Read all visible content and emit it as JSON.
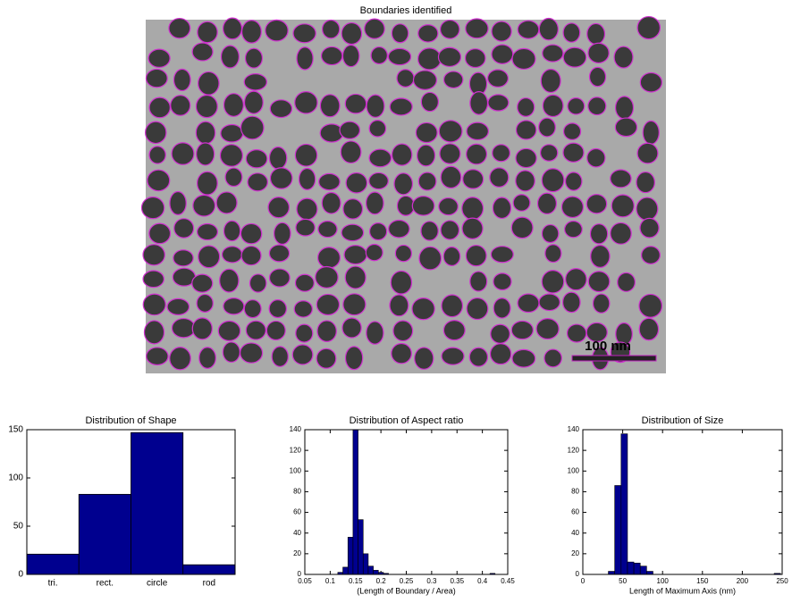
{
  "image": {
    "title": "Boundaries identified",
    "scale_label": "100 nm"
  },
  "chart_data": [
    {
      "type": "bar",
      "title": "Distribution of Shape",
      "categories": [
        "tri.",
        "rect.",
        "circle",
        "rod"
      ],
      "values": [
        21,
        83,
        147,
        10
      ],
      "color": "#00008f",
      "ylim": [
        0,
        150
      ],
      "yticks": [
        0,
        50,
        100,
        150
      ]
    },
    {
      "type": "histogram",
      "title": "Distribution of Aspect ratio",
      "xlabel": "(Length of Boundary / Area)",
      "color": "#00008f",
      "bins": [
        0.115,
        0.125,
        0.135,
        0.145,
        0.155,
        0.165,
        0.175,
        0.185,
        0.195,
        0.205,
        0.215,
        0.225,
        0.235,
        0.245,
        0.255,
        0.265,
        0.275,
        0.285,
        0.295,
        0.305,
        0.315,
        0.325,
        0.335,
        0.345,
        0.355,
        0.365,
        0.375,
        0.385,
        0.395,
        0.405,
        0.415,
        0.425
      ],
      "values": [
        2,
        7,
        36,
        140,
        53,
        20,
        8,
        4,
        2,
        1,
        0,
        0,
        0,
        0,
        0,
        0,
        0,
        0,
        0,
        0,
        0,
        0,
        0,
        0,
        0,
        0,
        0,
        0,
        0,
        0,
        1
      ],
      "xlim": [
        0.05,
        0.45
      ],
      "xticks": [
        0.05,
        0.1,
        0.15,
        0.2,
        0.25,
        0.3,
        0.35,
        0.4,
        0.45
      ],
      "ylim": [
        0,
        140
      ],
      "yticks": [
        0,
        20,
        40,
        60,
        80,
        100,
        120,
        140
      ]
    },
    {
      "type": "histogram",
      "title": "Distribution of Size",
      "xlabel": "Length of Maximum Axis (nm)",
      "color": "#00008f",
      "bins": [
        32,
        40,
        48,
        56,
        64,
        72,
        80,
        88,
        96,
        104,
        112,
        120,
        128,
        136,
        144,
        152,
        160,
        168,
        176,
        184,
        192,
        200,
        208,
        216,
        224,
        232,
        240,
        248
      ],
      "values": [
        3,
        86,
        136,
        12,
        11,
        8,
        3,
        0,
        0,
        0,
        0,
        0,
        0,
        0,
        0,
        0,
        0,
        0,
        0,
        0,
        0,
        0,
        0,
        0,
        0,
        0,
        1
      ],
      "xlim": [
        0,
        250
      ],
      "xticks": [
        0,
        50,
        100,
        150,
        200,
        250
      ],
      "ylim": [
        0,
        140
      ],
      "yticks": [
        0,
        20,
        40,
        60,
        80,
        100,
        120,
        140
      ]
    }
  ]
}
